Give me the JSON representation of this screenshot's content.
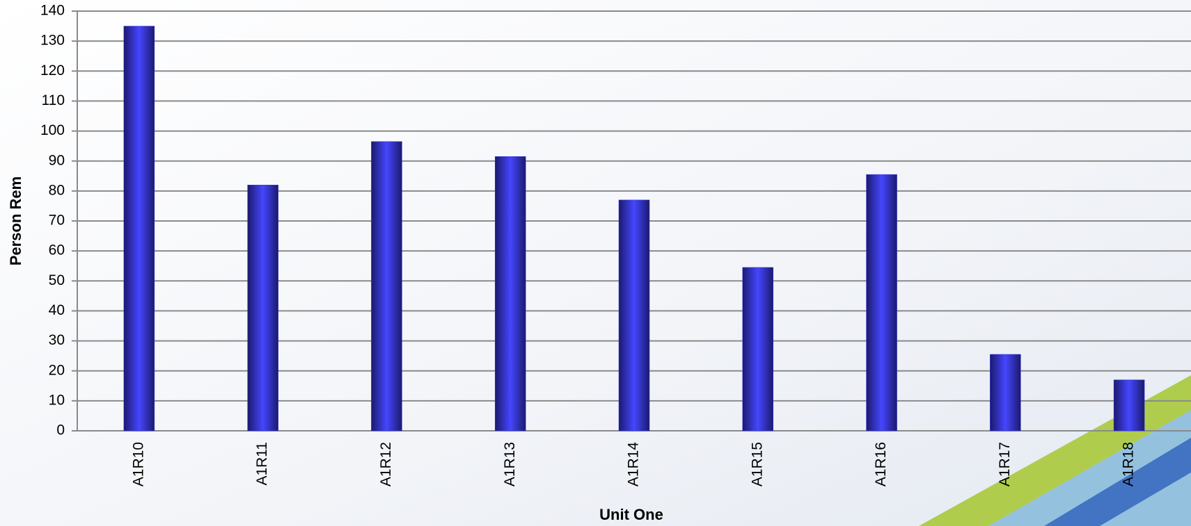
{
  "chart_data": {
    "type": "bar",
    "x_label": "Unit One",
    "y_label": "Person Rem",
    "categories": [
      "A1R10",
      "A1R11",
      "A1R12",
      "A1R13",
      "A1R14",
      "A1R15",
      "A1R16",
      "A1R17",
      "A1R18"
    ],
    "values": [
      135,
      82,
      96.5,
      91.5,
      77,
      54.5,
      85.5,
      25.5,
      17
    ],
    "color": "#3636e0",
    "ylim": [
      0,
      140
    ],
    "yticks": [
      0,
      10,
      20,
      30,
      40,
      50,
      60,
      70,
      80,
      90,
      100,
      110,
      120,
      130,
      140
    ],
    "grid": true
  }
}
